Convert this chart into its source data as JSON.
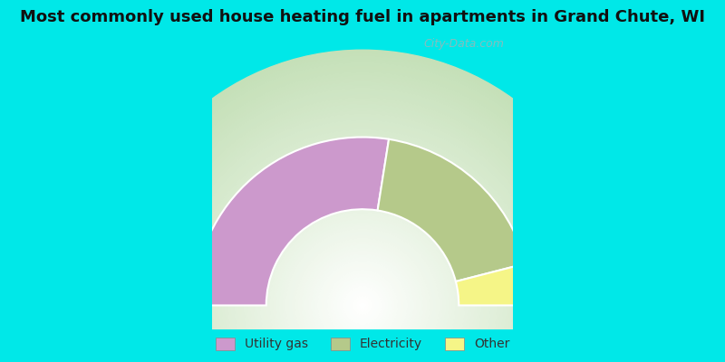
{
  "title": "Most commonly used house heating fuel in apartments in Grand Chute, WI",
  "title_fontsize": 13,
  "background_outer": "#00e8e8",
  "background_inner_center": "#ffffff",
  "background_inner_edge": "#c5e0b8",
  "segments": [
    {
      "label": "Utility gas",
      "value": 55.0,
      "color": "#cc99cc"
    },
    {
      "label": "Electricity",
      "value": 37.0,
      "color": "#b5c98a"
    },
    {
      "label": "Other",
      "value": 8.0,
      "color": "#f5f587"
    }
  ],
  "legend_colors": [
    "#cc99cc",
    "#b5c98a",
    "#f5f587"
  ],
  "legend_labels": [
    "Utility gas",
    "Electricity",
    "Other"
  ],
  "watermark": "City-Data.com"
}
